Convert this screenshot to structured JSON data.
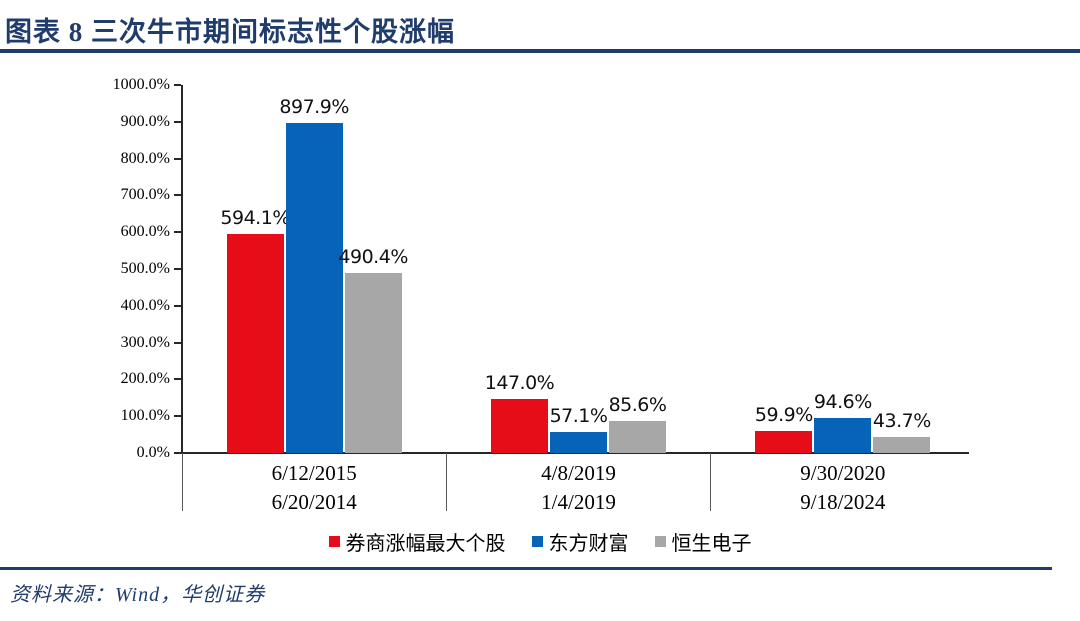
{
  "header": {
    "title": "图表 8  三次牛市期间标志性个股涨幅"
  },
  "source_note": "资料来源：Wind，华创证券",
  "colors": {
    "accent_navy": "#1f3c6d",
    "series_red": "#e60d18",
    "series_blue": "#0663b8",
    "series_gray": "#a7a7a7",
    "axis": "#262626",
    "divider": "#595959"
  },
  "chart_data": {
    "type": "bar",
    "title": "三次牛市期间标志性个股涨幅",
    "categories": [
      {
        "line1": "6/12/2015",
        "line2": "6/20/2014"
      },
      {
        "line1": "4/8/2019",
        "line2": "1/4/2019"
      },
      {
        "line1": "9/30/2020",
        "line2": "9/18/2024"
      }
    ],
    "series": [
      {
        "name": "券商涨幅最大个股",
        "color": "#e60d18",
        "values": [
          594.1,
          147.0,
          59.9
        ]
      },
      {
        "name": "东方财富",
        "color": "#0663b8",
        "values": [
          897.9,
          57.1,
          94.6
        ]
      },
      {
        "name": "恒生电子",
        "color": "#a7a7a7",
        "values": [
          490.4,
          85.6,
          43.7
        ]
      }
    ],
    "value_labels": [
      [
        "594.1%",
        "147.0%",
        "59.9%"
      ],
      [
        "897.9%",
        "57.1%",
        "94.6%"
      ],
      [
        "490.4%",
        "85.6%",
        "43.7%"
      ]
    ],
    "ylim": [
      0,
      1000
    ],
    "ytick_step": 100,
    "ytick_labels": [
      "0.0%",
      "100.0%",
      "200.0%",
      "300.0%",
      "400.0%",
      "500.0%",
      "600.0%",
      "700.0%",
      "800.0%",
      "900.0%",
      "1000.0%"
    ],
    "unit": "%",
    "grid": false,
    "legend_position": "bottom"
  }
}
